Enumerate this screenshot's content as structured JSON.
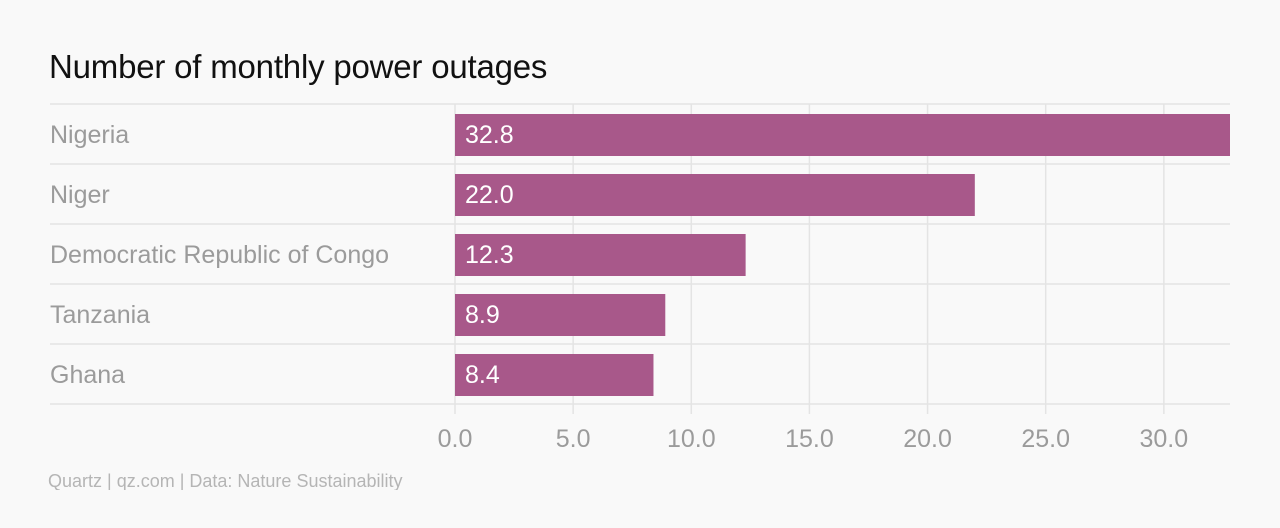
{
  "chart_data": {
    "type": "bar",
    "orientation": "horizontal",
    "title": "Number of monthly power outages",
    "categories": [
      "Nigeria",
      "Niger",
      "Democratic Republic of Congo",
      "Tanzania",
      "Ghana"
    ],
    "values": [
      32.8,
      22.0,
      12.3,
      8.9,
      8.4
    ],
    "value_labels": [
      "32.8",
      "22.0",
      "12.3",
      "8.9",
      "8.4"
    ],
    "xticks": [
      0,
      5,
      10,
      15,
      20,
      25,
      30
    ],
    "xtick_labels": [
      "0.0",
      "5.0",
      "10.0",
      "15.0",
      "20.0",
      "25.0",
      "30.0"
    ],
    "xlim": [
      0,
      32.8
    ],
    "xlabel": "",
    "ylabel": "",
    "grid": true,
    "legend": "none",
    "bar_color": "#a8588a"
  },
  "footer": {
    "source": "Quartz | qz.com | Data: Nature Sustainability"
  },
  "colors": {
    "background": "#f9f9f9",
    "bar": "#a8588a",
    "grid": "#e4e4e4",
    "label": "#9b9b9b",
    "title": "#111111"
  }
}
